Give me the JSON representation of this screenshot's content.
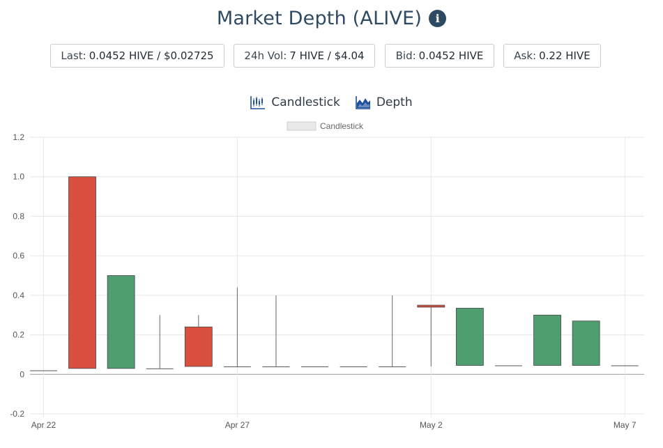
{
  "header": {
    "title": "Market Depth (ALIVE)"
  },
  "stats": [
    {
      "label": "Last:",
      "value": "0.0452 HIVE / $0.02725"
    },
    {
      "label": "24h Vol:",
      "value": "7 HIVE / $4.04"
    },
    {
      "label": "Bid:",
      "value": "0.0452 HIVE"
    },
    {
      "label": "Ask:",
      "value": "0.22 HIVE"
    }
  ],
  "tabs": {
    "candlestick": "Candlestick",
    "depth": "Depth"
  },
  "colors": {
    "up": "#4f9e70",
    "down": "#d9503f",
    "wick": "#666666",
    "title": "#2e4a63",
    "icon": "#1e4f9c"
  },
  "chart_data": {
    "type": "candlestick",
    "legend": "Candlestick",
    "ylim": [
      -0.2,
      1.2
    ],
    "yticks": [
      -0.2,
      0,
      0.2,
      0.4,
      0.6,
      0.8,
      1.0,
      1.2
    ],
    "ytick_labels": [
      "-0.2",
      "0",
      "0.2",
      "0.4",
      "0.6",
      "0.8",
      "1.0",
      "1.2"
    ],
    "xtick_labels": [
      {
        "label": "Apr 22",
        "day": 0
      },
      {
        "label": "Apr 27",
        "day": 5
      },
      {
        "label": "May 2",
        "day": 10
      },
      {
        "label": "May 7",
        "day": 15
      }
    ],
    "x_range": [
      -0.35,
      15.5
    ],
    "candles": [
      {
        "day": 0,
        "open": 0.02,
        "high": 0.02,
        "low": 0.02,
        "close": 0.02
      },
      {
        "day": 1,
        "open": 1.0,
        "high": 1.0,
        "low": 0.03,
        "close": 0.03
      },
      {
        "day": 2,
        "open": 0.03,
        "high": 0.5,
        "low": 0.03,
        "close": 0.5
      },
      {
        "day": 3,
        "open": 0.03,
        "high": 0.3,
        "low": 0.03,
        "close": 0.03
      },
      {
        "day": 4,
        "open": 0.24,
        "high": 0.3,
        "low": 0.04,
        "close": 0.04
      },
      {
        "day": 5,
        "open": 0.04,
        "high": 0.44,
        "low": 0.04,
        "close": 0.04
      },
      {
        "day": 6,
        "open": 0.04,
        "high": 0.4,
        "low": 0.04,
        "close": 0.04
      },
      {
        "day": 7,
        "open": 0.04,
        "high": 0.04,
        "low": 0.04,
        "close": 0.04
      },
      {
        "day": 8,
        "open": 0.04,
        "high": 0.04,
        "low": 0.04,
        "close": 0.04
      },
      {
        "day": 9,
        "open": 0.04,
        "high": 0.4,
        "low": 0.04,
        "close": 0.04
      },
      {
        "day": 10,
        "open": 0.35,
        "high": 0.35,
        "low": 0.04,
        "close": 0.34
      },
      {
        "day": 11,
        "open": 0.0452,
        "high": 0.335,
        "low": 0.0452,
        "close": 0.335
      },
      {
        "day": 12,
        "open": 0.0452,
        "high": 0.0452,
        "low": 0.0452,
        "close": 0.0452
      },
      {
        "day": 13,
        "open": 0.0452,
        "high": 0.3,
        "low": 0.0452,
        "close": 0.3
      },
      {
        "day": 14,
        "open": 0.0452,
        "high": 0.27,
        "low": 0.0452,
        "close": 0.27
      },
      {
        "day": 15,
        "open": 0.0452,
        "high": 0.0452,
        "low": 0.0452,
        "close": 0.0452
      }
    ]
  }
}
